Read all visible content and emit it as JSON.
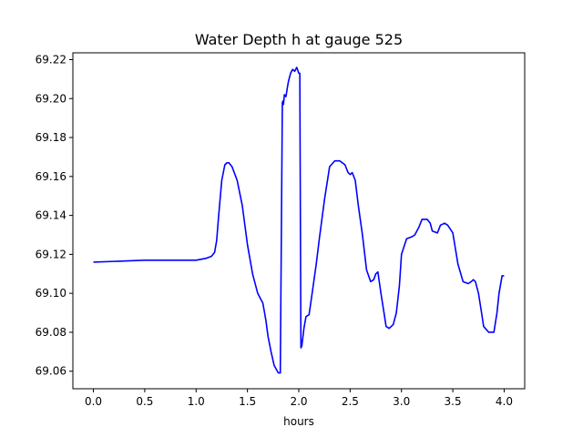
{
  "chart_data": {
    "type": "line",
    "title": "Water Depth h at gauge 525",
    "xlabel": "hours",
    "ylabel": "",
    "xlim": [
      -0.2,
      4.2
    ],
    "ylim": [
      69.051,
      69.2235
    ],
    "x_ticks": [
      0.0,
      0.5,
      1.0,
      1.5,
      2.0,
      2.5,
      3.0,
      3.5,
      4.0
    ],
    "x_tick_labels": [
      "0.0",
      "0.5",
      "1.0",
      "1.5",
      "2.0",
      "2.5",
      "3.0",
      "3.5",
      "4.0"
    ],
    "y_ticks": [
      69.06,
      69.08,
      69.1,
      69.12,
      69.14,
      69.16,
      69.18,
      69.2,
      69.22
    ],
    "y_tick_labels": [
      "69.06",
      "69.08",
      "69.10",
      "69.12",
      "69.14",
      "69.16",
      "69.18",
      "69.20",
      "69.22"
    ],
    "grid": false,
    "series": [
      {
        "color": "#0000ff",
        "x": [
          0.0,
          0.5,
          1.0,
          1.1,
          1.15,
          1.18,
          1.2,
          1.22,
          1.25,
          1.28,
          1.3,
          1.32,
          1.35,
          1.4,
          1.45,
          1.5,
          1.55,
          1.6,
          1.62,
          1.65,
          1.68,
          1.7,
          1.73,
          1.76,
          1.8,
          1.82,
          1.84,
          1.85,
          1.851,
          1.86,
          1.875,
          1.89,
          1.9,
          1.92,
          1.94,
          1.96,
          1.98,
          2.0,
          2.01,
          2.02,
          2.021,
          2.03,
          2.05,
          2.07,
          2.1,
          2.13,
          2.17,
          2.2,
          2.25,
          2.3,
          2.35,
          2.4,
          2.45,
          2.48,
          2.5,
          2.52,
          2.55,
          2.58,
          2.62,
          2.66,
          2.7,
          2.73,
          2.75,
          2.77,
          2.8,
          2.83,
          2.85,
          2.88,
          2.92,
          2.95,
          2.98,
          3.0,
          3.05,
          3.1,
          3.13,
          3.17,
          3.2,
          3.25,
          3.28,
          3.3,
          3.35,
          3.38,
          3.42,
          3.45,
          3.5,
          3.55,
          3.6,
          3.65,
          3.68,
          3.7,
          3.72,
          3.75,
          3.78,
          3.8,
          3.85,
          3.9,
          3.93,
          3.95,
          3.98,
          4.0
        ],
        "y": [
          69.116,
          69.117,
          69.117,
          69.118,
          69.119,
          69.121,
          69.127,
          69.14,
          69.158,
          69.166,
          69.167,
          69.167,
          69.165,
          69.158,
          69.145,
          69.125,
          69.11,
          69.1,
          69.098,
          69.095,
          69.086,
          69.078,
          69.07,
          69.063,
          69.0592,
          69.0591,
          69.198,
          69.199,
          69.197,
          69.202,
          69.201,
          69.206,
          69.209,
          69.213,
          69.215,
          69.214,
          69.216,
          69.213,
          69.213,
          69.081,
          69.072,
          69.073,
          69.082,
          69.088,
          69.089,
          69.1,
          69.115,
          69.128,
          69.148,
          69.165,
          69.168,
          69.168,
          69.166,
          69.162,
          69.161,
          69.162,
          69.158,
          69.145,
          69.13,
          69.112,
          69.106,
          69.107,
          69.11,
          69.111,
          69.1,
          69.09,
          69.083,
          69.082,
          69.084,
          69.09,
          69.104,
          69.12,
          69.128,
          69.129,
          69.13,
          69.134,
          69.138,
          69.138,
          69.136,
          69.132,
          69.131,
          69.135,
          69.136,
          69.135,
          69.131,
          69.115,
          69.106,
          69.105,
          69.106,
          69.107,
          69.106,
          69.1,
          69.09,
          69.083,
          69.08,
          69.08,
          69.09,
          69.1,
          69.109,
          69.109
        ]
      }
    ]
  }
}
